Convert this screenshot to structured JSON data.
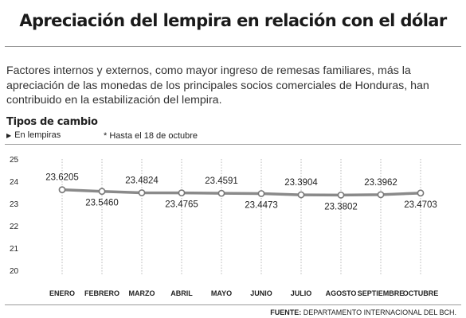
{
  "header": {
    "title": "Apreciación del lempira en relación con el dólar",
    "intro": "Factores internos y externos, como mayor ingreso de remesas familiares, más la apreciación de las monedas de los principales socios comerciales de Honduras, han contribuido en la estabilización del lempira."
  },
  "legend": {
    "subtitle": "Tipos de cambio",
    "unit": "En lempiras",
    "note": "* Hasta el 18 de octubre"
  },
  "footer": {
    "source_label": "FUENTE:",
    "source_text": "DEPARTAMENTO INTERNACIONAL DEL BCH."
  },
  "colors": {
    "line": "#8a8a8a",
    "marker_fill": "#ffffff",
    "marker_stroke": "#777777",
    "grid": "#b8b8b8",
    "axis_text": "#222222"
  },
  "chart_data": {
    "type": "line",
    "title": "Tipos de cambio",
    "ylabel": "En lempiras",
    "categories": [
      "ENERO",
      "FEBRERO",
      "MARZO",
      "ABRIL",
      "MAYO",
      "JUNIO",
      "JULIO",
      "AGOSTO",
      "SEPTIEMBRE",
      "OCTUBRE"
    ],
    "values": [
      23.6205,
      23.546,
      23.4824,
      23.4765,
      23.4591,
      23.4473,
      23.3904,
      23.3802,
      23.3962,
      23.4703
    ],
    "value_labels": [
      "23.6205",
      "23.5460",
      "23.4824",
      "23.4765",
      "23.4591",
      "23.4473",
      "23.3904",
      "23.3802",
      "23.3962",
      "23.4703"
    ],
    "yticks": [
      "20",
      "21",
      "22",
      "23",
      "24",
      "25"
    ],
    "ylim": [
      20,
      25
    ],
    "grid": "vertical"
  }
}
